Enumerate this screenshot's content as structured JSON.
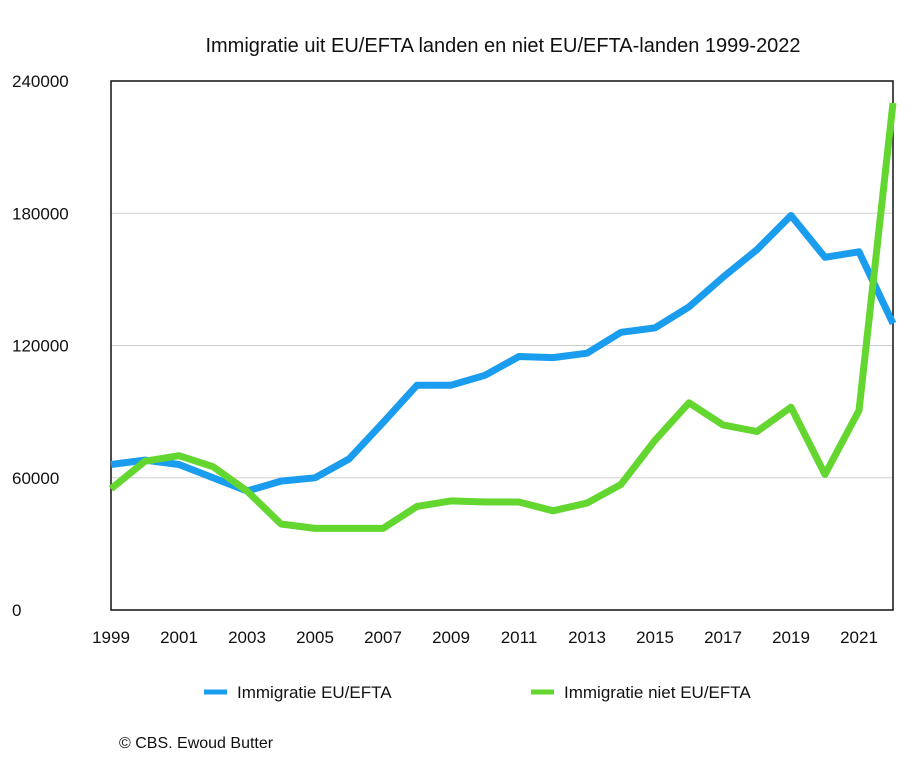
{
  "chart_data": {
    "type": "line",
    "title": "Immigratie uit EU/EFTA landen en niet EU/EFTA-landen 1999-2022",
    "xlabel": "",
    "ylabel": "",
    "x": [
      1999,
      2000,
      2001,
      2002,
      2003,
      2004,
      2005,
      2006,
      2007,
      2008,
      2009,
      2010,
      2011,
      2012,
      2013,
      2014,
      2015,
      2016,
      2017,
      2018,
      2019,
      2020,
      2021,
      2022
    ],
    "x_tick_labels": [
      "1999",
      "2001",
      "2003",
      "2005",
      "2007",
      "2009",
      "2011",
      "2013",
      "2015",
      "2017",
      "2019",
      "2021"
    ],
    "xlim": [
      1999,
      2022
    ],
    "ylim": [
      0,
      240000
    ],
    "y_tick_labels": [
      "0",
      "60000",
      "120000",
      "180000",
      "240000"
    ],
    "y_ticks": [
      0,
      60000,
      120000,
      180000,
      240000
    ],
    "grid": "horizontal",
    "legend_position": "bottom",
    "series": [
      {
        "name": "Immigratie EU/EFTA",
        "color": "#1a9cef",
        "values": [
          66000,
          68000,
          66000,
          60000,
          54000,
          58500,
          60000,
          68500,
          85000,
          102000,
          102000,
          106500,
          115000,
          114500,
          116500,
          126000,
          128000,
          137500,
          151000,
          163500,
          179000,
          160000,
          162500,
          130000
        ]
      },
      {
        "name": "Immigratie niet EU/EFTA",
        "color": "#63d62f",
        "values": [
          55000,
          67500,
          70000,
          65000,
          54000,
          39000,
          37000,
          37000,
          37000,
          47000,
          49500,
          49000,
          49000,
          45000,
          48500,
          57000,
          77000,
          94000,
          84000,
          81000,
          92000,
          61500,
          90500,
          230000
        ]
      }
    ]
  },
  "credit": "© CBS. Ewoud Butter"
}
